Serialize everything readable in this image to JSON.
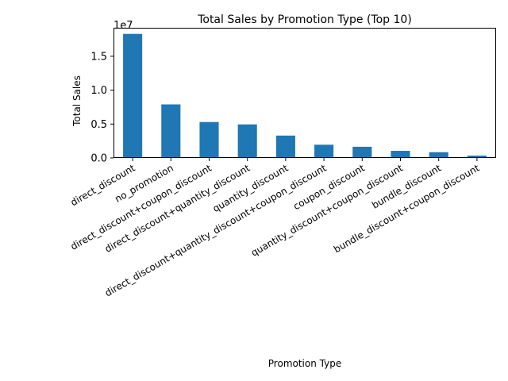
{
  "chart_data": {
    "type": "bar",
    "title": "Total Sales by Promotion Type (Top 10)",
    "xlabel": "Promotion Type",
    "ylabel": "Total Sales",
    "y_scale_label": "1e7",
    "categories": [
      "direct_discount",
      "no_promotion",
      "direct_discount+coupon_discount",
      "direct_discount+quantity_discount",
      "quantity_discount",
      "direct_discount+quantity_discount+coupon_discount",
      "coupon_discount",
      "quantity_discount+coupon_discount",
      "bundle_discount",
      "bundle_discount+coupon_discount"
    ],
    "values": [
      18300000,
      7900000,
      5300000,
      4950000,
      3300000,
      1950000,
      1650000,
      1050000,
      850000,
      350000
    ],
    "ylim": [
      0,
      19200000
    ],
    "yticks": [
      0,
      5000000,
      10000000,
      15000000
    ],
    "ytick_labels": [
      "0.0",
      "0.5",
      "1.0",
      "1.5"
    ],
    "bar_color": "#1f77b4",
    "grid": false,
    "legend": "none"
  }
}
